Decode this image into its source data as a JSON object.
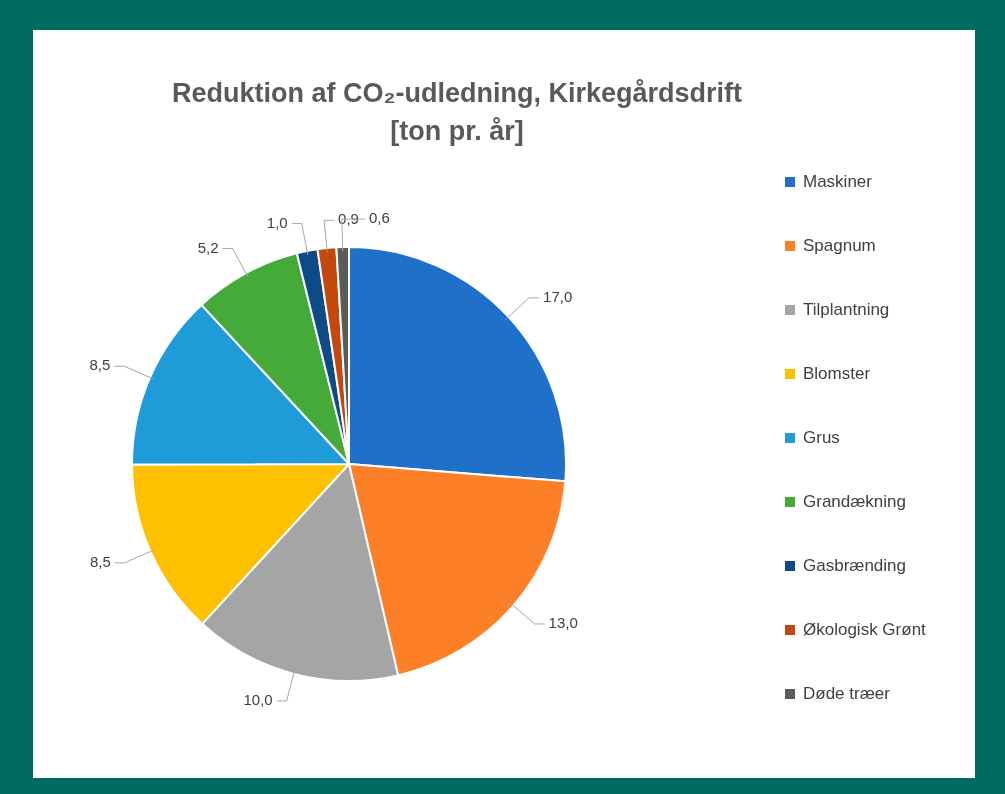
{
  "chart_data": {
    "type": "pie",
    "title": "Reduktion af CO₂-udledning, Kirkegårdsdrift\n[ton pr. år]",
    "categories": [
      "Maskiner",
      "Spagnum",
      "Tilplantning",
      "Blomster",
      "Grus",
      "Grandækning",
      "Gasbrænding",
      "Økologisk Grønt",
      "Døde træer"
    ],
    "values": [
      17.0,
      13.0,
      10.0,
      8.5,
      8.5,
      5.2,
      1.0,
      0.9,
      0.6
    ],
    "value_labels": [
      "17,0",
      "13,0",
      "10,0",
      "8,5",
      "8,5",
      "5,2",
      "1,0",
      "0,9",
      "0,6"
    ],
    "colors": [
      "#1f70c8",
      "#fd8028",
      "#a5a5a5",
      "#ffc000",
      "#1f9bd7",
      "#44ab3b",
      "#0e4a86",
      "#c4470e",
      "#5b5b5b"
    ],
    "legend": "right"
  }
}
